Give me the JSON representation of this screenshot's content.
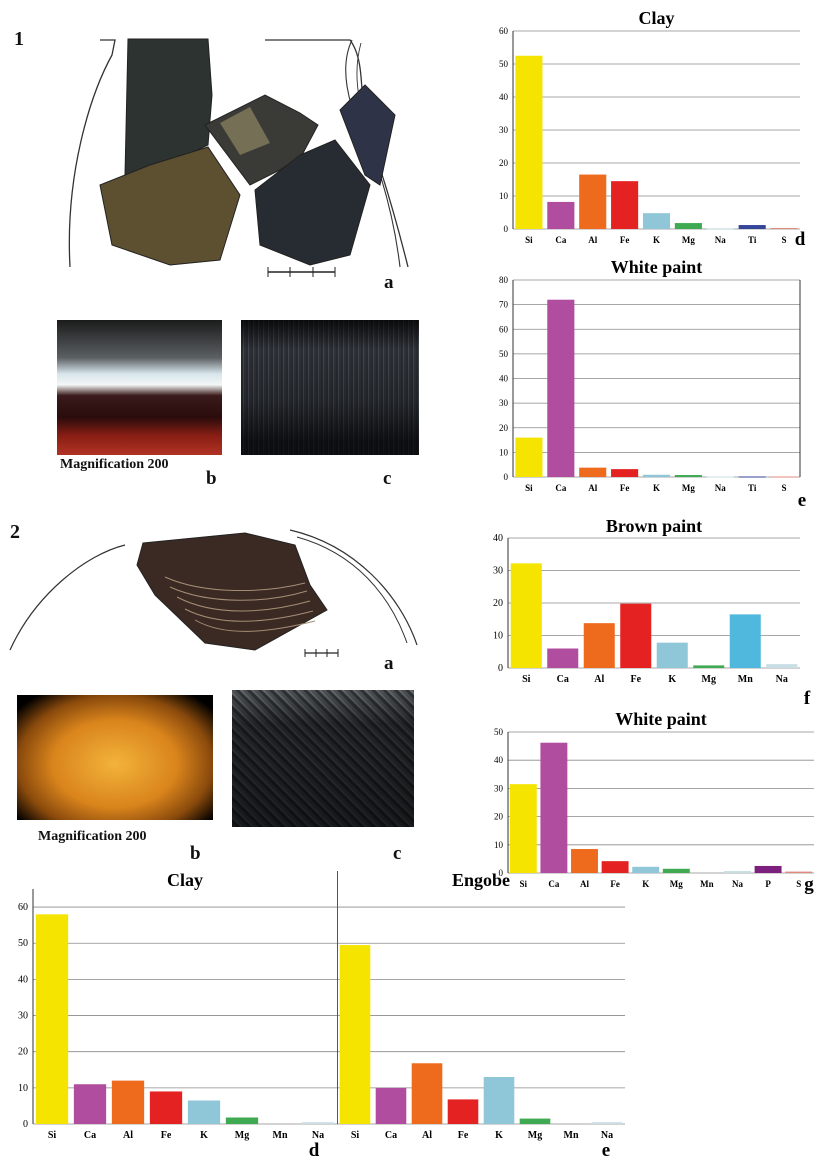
{
  "figure_numbers": [
    "1",
    "2"
  ],
  "colors": {
    "Si": "#f5e400",
    "Ca": "#b04d9e",
    "Al": "#ee6b1e",
    "Fe": "#e52222",
    "K": "#8fc7d9",
    "Mg": "#3faa52",
    "Na": "#c9dfe5",
    "Ti": "#34469a",
    "S": "#e5897d",
    "Mn": "#4fb8dc",
    "P": "#7d1f7c"
  },
  "photo_panels": {
    "f1a": "a",
    "f1b": "b",
    "f1c": "c",
    "f2a": "a",
    "f2b": "b",
    "f2c": "c",
    "f1b_caption": "Magnification 200",
    "f2b_caption": "Magnification 200"
  },
  "chart_data": [
    {
      "id": "c1",
      "type": "bar",
      "title": "Clay",
      "panel_label": "d",
      "categories": [
        "Si",
        "Ca",
        "Al",
        "Fe",
        "K",
        "Mg",
        "Na",
        "Ti",
        "S"
      ],
      "values": [
        52.5,
        8.2,
        16.5,
        14.5,
        4.8,
        1.8,
        0.1,
        1.2,
        0.3
      ],
      "ylim": [
        0,
        60
      ],
      "yticks": [
        0,
        10,
        20,
        30,
        40,
        50,
        60
      ],
      "grid": true
    },
    {
      "id": "c2",
      "type": "bar",
      "title": "White paint",
      "panel_label": "e",
      "categories": [
        "Si",
        "Ca",
        "Al",
        "Fe",
        "K",
        "Mg",
        "Na",
        "Ti",
        "S"
      ],
      "values": [
        16,
        72,
        3.8,
        3.2,
        0.9,
        0.8,
        0.2,
        0.2,
        0.2
      ],
      "ylim": [
        0,
        80
      ],
      "yticks": [
        0,
        10,
        20,
        30,
        40,
        50,
        60,
        70,
        80
      ],
      "grid": true
    },
    {
      "id": "c3",
      "type": "bar",
      "title": "Brown paint",
      "panel_label": "f",
      "categories": [
        "Si",
        "Ca",
        "Al",
        "Fe",
        "K",
        "Mg",
        "Mn",
        "Na"
      ],
      "values": [
        32.2,
        6,
        13.8,
        19.8,
        7.8,
        0.8,
        16.5,
        1.2
      ],
      "ylim": [
        0,
        40
      ],
      "yticks": [
        0,
        10,
        20,
        30,
        40
      ],
      "grid": true
    },
    {
      "id": "c4",
      "type": "bar",
      "title": "White paint",
      "panel_label": "g",
      "categories": [
        "Si",
        "Ca",
        "Al",
        "Fe",
        "K",
        "Mg",
        "Mn",
        "Na",
        "P",
        "S"
      ],
      "values": [
        31.5,
        46.2,
        8.5,
        4.2,
        2.2,
        1.5,
        0,
        0.7,
        2.5,
        0.5
      ],
      "ylim": [
        0,
        50
      ],
      "yticks": [
        0,
        10,
        20,
        30,
        40,
        50
      ],
      "grid": true
    },
    {
      "id": "c5",
      "type": "bar",
      "title": "Clay",
      "panel_label": "d",
      "categories": [
        "Si",
        "Ca",
        "Al",
        "Fe",
        "K",
        "Mg",
        "Mn",
        "Na"
      ],
      "values": [
        58,
        11,
        12,
        9,
        6.5,
        1.8,
        0,
        0.5
      ],
      "ylim": [
        0,
        65
      ],
      "yticks": [
        0,
        10,
        20,
        30,
        40,
        50,
        60
      ],
      "grid": true
    },
    {
      "id": "c6",
      "type": "bar",
      "title": "Engobe",
      "panel_label": "e",
      "categories": [
        "Si",
        "Ca",
        "Al",
        "Fe",
        "K",
        "Mg",
        "Mn",
        "Na"
      ],
      "values": [
        49.5,
        10,
        16.8,
        6.8,
        13,
        1.5,
        0,
        0.5
      ],
      "ylim": [
        0,
        65
      ],
      "yticks": [],
      "grid": true
    }
  ]
}
